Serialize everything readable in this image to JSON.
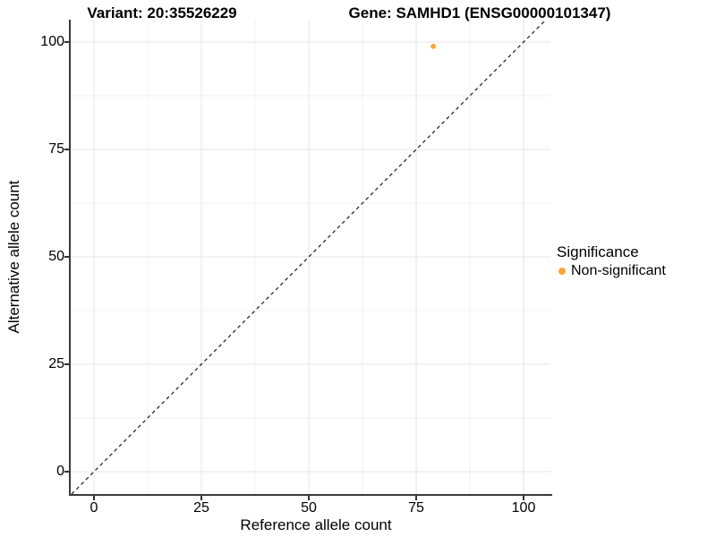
{
  "titles": {
    "variant": "Variant: 20:35526229",
    "gene": "Gene: SAMHD1 (ENSG00000101347)"
  },
  "axes": {
    "x_label": "Reference allele count",
    "y_label": "Alternative allele count",
    "x_ticks": [
      "0",
      "25",
      "50",
      "75",
      "100"
    ],
    "y_ticks": [
      "0",
      "25",
      "50",
      "75",
      "100"
    ]
  },
  "legend": {
    "title": "Significance",
    "items": [
      {
        "label": "Non-significant",
        "color": "#FAA43A"
      }
    ]
  },
  "colors": {
    "point": "#FAA43A",
    "grid_major": "#E4E4E4",
    "grid_minor": "#F0F0F0",
    "reference_line": "#1A1A1A",
    "axis_line": "#3A3A3A"
  },
  "chart_data": {
    "type": "scatter",
    "title_left": "Variant: 20:35526229",
    "title_right": "Gene: SAMHD1 (ENSG00000101347)",
    "xlabel": "Reference allele count",
    "ylabel": "Alternative allele count",
    "xlim": [
      -5.6,
      106.3
    ],
    "ylim": [
      -5.2,
      105.2
    ],
    "x_major_ticks": [
      0,
      25,
      50,
      75,
      100
    ],
    "y_major_ticks": [
      0,
      25,
      50,
      75,
      100
    ],
    "x_minor_gridlines": [
      12.5,
      37.5,
      62.5,
      87.5
    ],
    "y_minor_gridlines": [
      12.5,
      37.5,
      62.5,
      87.5
    ],
    "grid": true,
    "legend_position": "right",
    "series": [
      {
        "name": "Non-significant",
        "color": "#FAA43A",
        "points": [
          {
            "x": 79,
            "y": 99
          }
        ]
      }
    ],
    "reference_line": {
      "equation": "y = x",
      "slope": 1,
      "intercept": 0,
      "style": "dashed",
      "color": "#1A1A1A"
    }
  }
}
